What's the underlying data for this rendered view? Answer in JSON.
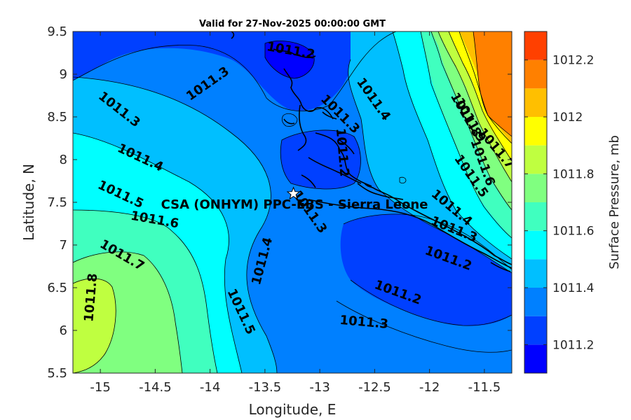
{
  "title": "Valid for 27-Nov-2025 00:00:00 GMT",
  "xlabel": "Longitude, E",
  "ylabel": "Latitude, N",
  "colorbar_label": "Surface Pressure, mb",
  "station_label": "CSA (ONHYM) PPC-EBS  - Sierra Leone",
  "station_marker": "star",
  "chart_data": {
    "type": "heatmap",
    "title": "Valid for 27-Nov-2025 00:00:00 GMT",
    "xlabel": "Longitude, E",
    "ylabel": "Latitude, N",
    "xlim": [
      -15.25,
      -11.25
    ],
    "ylim": [
      5.5,
      9.5
    ],
    "xticks": [
      -15,
      -14.5,
      -14,
      -13.5,
      -13,
      -12.5,
      -12,
      -11.5
    ],
    "xtick_labels": [
      "-15",
      "-14.5",
      "-14",
      "-13.5",
      "-13",
      "-12.5",
      "-12",
      "-11.5"
    ],
    "yticks": [
      5.5,
      6,
      6.5,
      7,
      7.5,
      8,
      8.5,
      9,
      9.5
    ],
    "ytick_labels": [
      "5.5",
      "6",
      "6.5",
      "7",
      "7.5",
      "8",
      "8.5",
      "9",
      "9.5"
    ],
    "colorbar": {
      "label": "Surface Pressure, mb",
      "range": [
        1011.1,
        1012.3
      ],
      "ticks": [
        1011.2,
        1011.4,
        1011.6,
        1011.8,
        1012,
        1012.2
      ],
      "tick_labels": [
        "1011.2",
        "1011.4",
        "1011.6",
        "1011.8",
        "1012",
        "1012.2"
      ],
      "levels": [
        {
          "from": 1011.1,
          "to": 1011.2,
          "color": "#0000ff"
        },
        {
          "from": 1011.2,
          "to": 1011.3,
          "color": "#0040ff"
        },
        {
          "from": 1011.3,
          "to": 1011.4,
          "color": "#0080ff"
        },
        {
          "from": 1011.4,
          "to": 1011.5,
          "color": "#00bfff"
        },
        {
          "from": 1011.5,
          "to": 1011.6,
          "color": "#00ffff"
        },
        {
          "from": 1011.6,
          "to": 1011.7,
          "color": "#40ffbf"
        },
        {
          "from": 1011.7,
          "to": 1011.8,
          "color": "#80ff80"
        },
        {
          "from": 1011.8,
          "to": 1011.9,
          "color": "#bfff40"
        },
        {
          "from": 1011.9,
          "to": 1012.0,
          "color": "#ffff00"
        },
        {
          "from": 1012.0,
          "to": 1012.1,
          "color": "#ffbf00"
        },
        {
          "from": 1012.1,
          "to": 1012.2,
          "color": "#ff8000"
        },
        {
          "from": 1012.2,
          "to": 1012.3,
          "color": "#ff4000"
        },
        {
          "from": 1012.3,
          "to": 1012.4,
          "color": "#ff0000"
        }
      ]
    },
    "contour_labels": [
      {
        "text": "1011.2",
        "lon": -13.27,
        "lat": 9.23,
        "rot": 10
      },
      {
        "text": "1011.3",
        "lon": -14.0,
        "lat": 8.85,
        "rot": -35
      },
      {
        "text": "1011.3",
        "lon": -14.85,
        "lat": 8.55,
        "rot": 38
      },
      {
        "text": "1011.4",
        "lon": -12.54,
        "lat": 8.68,
        "rot": 55
      },
      {
        "text": "1011.3",
        "lon": -12.84,
        "lat": 8.5,
        "rot": 45
      },
      {
        "text": "1011.2",
        "lon": -12.83,
        "lat": 8.08,
        "rot": 85
      },
      {
        "text": "1011.4",
        "lon": -14.65,
        "lat": 7.98,
        "rot": 25
      },
      {
        "text": "1011.5",
        "lon": -14.83,
        "lat": 7.55,
        "rot": 25
      },
      {
        "text": "1011.3",
        "lon": -13.12,
        "lat": 7.36,
        "rot": 55
      },
      {
        "text": "1011.6",
        "lon": -14.51,
        "lat": 7.25,
        "rot": 10
      },
      {
        "text": "1011.4",
        "lon": -13.49,
        "lat": 6.8,
        "rot": -75
      },
      {
        "text": "1011.7",
        "lon": -14.82,
        "lat": 6.84,
        "rot": 30
      },
      {
        "text": "1011.8",
        "lon": -15.05,
        "lat": 6.38,
        "rot": -85
      },
      {
        "text": "1011.5",
        "lon": -13.75,
        "lat": 6.2,
        "rot": 65
      },
      {
        "text": "1011.2",
        "lon": -12.3,
        "lat": 6.4,
        "rot": 20
      },
      {
        "text": "1011.3",
        "lon": -12.6,
        "lat": 6.05,
        "rot": 5
      },
      {
        "text": "1011.2",
        "lon": -11.84,
        "lat": 6.8,
        "rot": 20
      },
      {
        "text": "1011.3",
        "lon": -11.79,
        "lat": 7.14,
        "rot": 22
      },
      {
        "text": "1011.4",
        "lon": -11.82,
        "lat": 7.4,
        "rot": 40
      },
      {
        "text": "1011.5",
        "lon": -11.65,
        "lat": 7.78,
        "rot": 55
      },
      {
        "text": "1011.6",
        "lon": -11.55,
        "lat": 7.95,
        "rot": 70
      },
      {
        "text": "1011.7",
        "lon": -11.42,
        "lat": 8.1,
        "rot": 50
      },
      {
        "text": "1011.8",
        "lon": -11.7,
        "lat": 8.5,
        "rot": 60
      },
      {
        "text": "1011.9",
        "lon": -11.66,
        "lat": 8.44,
        "rot": 60
      }
    ],
    "station": {
      "lon": -13.24,
      "lat": 7.6,
      "label": "CSA (ONHYM) PPC-EBS  - Sierra Leone"
    }
  }
}
